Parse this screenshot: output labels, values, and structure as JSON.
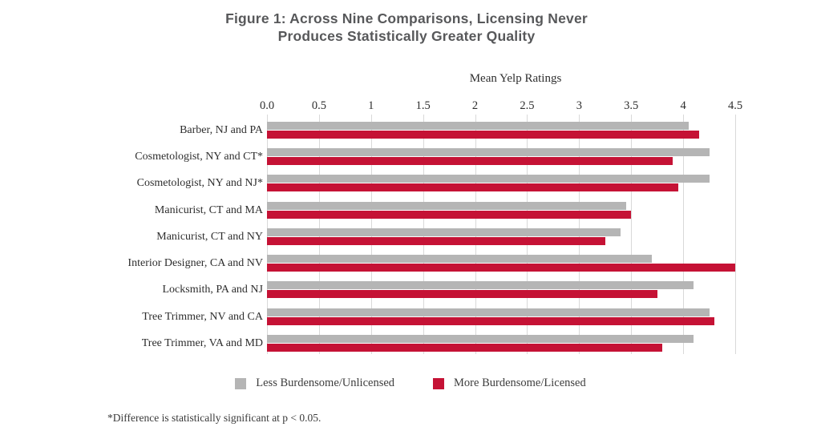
{
  "title": {
    "line1": "Figure 1: Across Nine Comparisons, Licensing Never",
    "line2": "Produces Statistically Greater Quality"
  },
  "footnote": "*Difference is statistically significant at p < 0.05.",
  "colors": {
    "less_burdensome": "#b5b5b5",
    "more_burdensome": "#c51235",
    "gridline": "#d9d9d9",
    "title_text": "#57585a",
    "body_text": "#2e2e2e"
  },
  "chart_data": {
    "type": "bar",
    "orientation": "horizontal",
    "title": "Figure 1: Across Nine Comparisons, Licensing Never Produces Statistically Greater Quality",
    "axis_title": "Mean Yelp Ratings",
    "xlabel": "Mean Yelp Ratings",
    "ylabel": "",
    "xlim": [
      0,
      4.5
    ],
    "x_ticks": [
      "0.0",
      "0.5",
      "1",
      "1.5",
      "2",
      "2.5",
      "3",
      "3.5",
      "4",
      "4.5"
    ],
    "grid": true,
    "legend_position": "bottom",
    "categories": [
      "Barber, NJ and PA",
      "Cosmetologist, NY and CT*",
      "Cosmetologist, NY and NJ*",
      "Manicurist, CT and MA",
      "Manicurist, CT and NY",
      "Interior Designer, CA and NV",
      "Locksmith, PA and NJ",
      "Tree Trimmer, NV and CA",
      "Tree Trimmer, VA and MD"
    ],
    "series": [
      {
        "name": "Less Burdensome/Unlicensed",
        "color": "#b5b5b5",
        "values": [
          4.05,
          4.25,
          4.25,
          3.45,
          3.4,
          3.7,
          4.1,
          4.25,
          4.1
        ]
      },
      {
        "name": "More Burdensome/Licensed",
        "color": "#c51235",
        "values": [
          4.15,
          3.9,
          3.95,
          3.5,
          3.25,
          4.5,
          3.75,
          4.3,
          3.8
        ]
      }
    ]
  }
}
